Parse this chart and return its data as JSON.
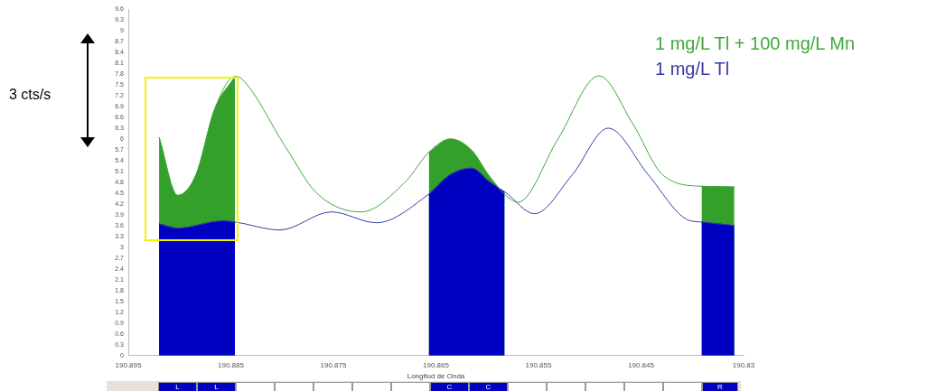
{
  "chart_data": {
    "type": "line",
    "xlabel": "Longitud de Onda",
    "legend": "top right",
    "grid": false,
    "xlim": [
      190.895,
      190.835
    ],
    "xticks": [
      190.895,
      190.885,
      190.875,
      190.865,
      190.855,
      190.845,
      {
        "value": 190.835,
        "label": "190.83"
      }
    ],
    "ylim": [
      0,
      9.6
    ],
    "yticks": [
      0,
      0.3,
      0.6,
      0.9,
      1.2,
      1.5,
      1.8,
      2.1,
      2.4,
      2.7,
      3,
      3.3,
      3.6,
      3.9,
      4.2,
      4.5,
      4.8,
      5.1,
      5.4,
      5.7,
      6,
      6.3,
      6.6,
      6.9,
      7.2,
      7.5,
      7.8,
      8.1,
      8.4,
      8.7,
      9,
      9.3,
      9.6
    ],
    "annotations": [
      "3 cts/s",
      "L",
      "L",
      "C",
      "C",
      "R"
    ],
    "series": [
      {
        "name": "1 mg/L Tl + 100 mg/L Mn",
        "type": "line",
        "color": "#3fa83a",
        "x": [
          190.892,
          190.8902,
          190.8884,
          190.8866,
          190.8846,
          190.884,
          190.8796,
          190.8767,
          190.8723,
          190.8679,
          190.8657,
          190.8636,
          190.8615,
          190.8599,
          190.8582,
          190.857,
          190.8531,
          190.8491,
          190.8458,
          190.8429,
          190.8391,
          190.8359
        ],
        "values": [
          6.05,
          4.44,
          5.01,
          6.81,
          7.73,
          7.68,
          5.75,
          4.52,
          3.98,
          4.84,
          5.63,
          6.0,
          5.68,
          5.01,
          4.44,
          4.25,
          6.0,
          7.75,
          6.42,
          5.01,
          4.69,
          4.67
        ]
      },
      {
        "name": "1 mg/L Tl",
        "type": "line",
        "color": "#3a3aa8",
        "x": [
          190.892,
          190.8902,
          190.8857,
          190.8846,
          190.8802,
          190.8752,
          190.8708,
          190.8657,
          190.8636,
          190.8615,
          190.8599,
          190.8582,
          190.8554,
          190.8517,
          190.8482,
          190.8443,
          190.8406,
          190.8391,
          190.8359
        ],
        "values": [
          3.65,
          3.53,
          3.73,
          3.7,
          3.48,
          3.98,
          3.68,
          4.47,
          5.01,
          5.19,
          4.84,
          4.52,
          3.93,
          5.01,
          6.3,
          5.01,
          3.78,
          3.7,
          3.6
        ]
      },
      {
        "type": "area",
        "color": "#0000c0",
        "x": [
          190.892,
          190.8902,
          190.8857,
          190.8846,
          190.875,
          190.8657,
          190.8636,
          190.8615,
          190.8599,
          190.8583,
          190.848,
          190.8391,
          190.8359
        ],
        "values": [
          3.65,
          3.53,
          3.73,
          3.7,
          null,
          4.47,
          5.01,
          5.19,
          4.84,
          4.52,
          null,
          3.7,
          3.6
        ]
      },
      {
        "type": "area",
        "color": "#33a02c",
        "x": [
          190.892,
          190.8902,
          190.8884,
          190.8866,
          190.8846,
          190.875,
          190.8657,
          190.8636,
          190.8615,
          190.8599,
          190.8583,
          190.848,
          190.8391,
          190.8359
        ],
        "values": [
          6.05,
          4.44,
          5.01,
          6.81,
          7.73,
          null,
          5.63,
          6.0,
          5.68,
          5.01,
          4.45,
          null,
          4.69,
          4.67
        ]
      }
    ]
  }
}
